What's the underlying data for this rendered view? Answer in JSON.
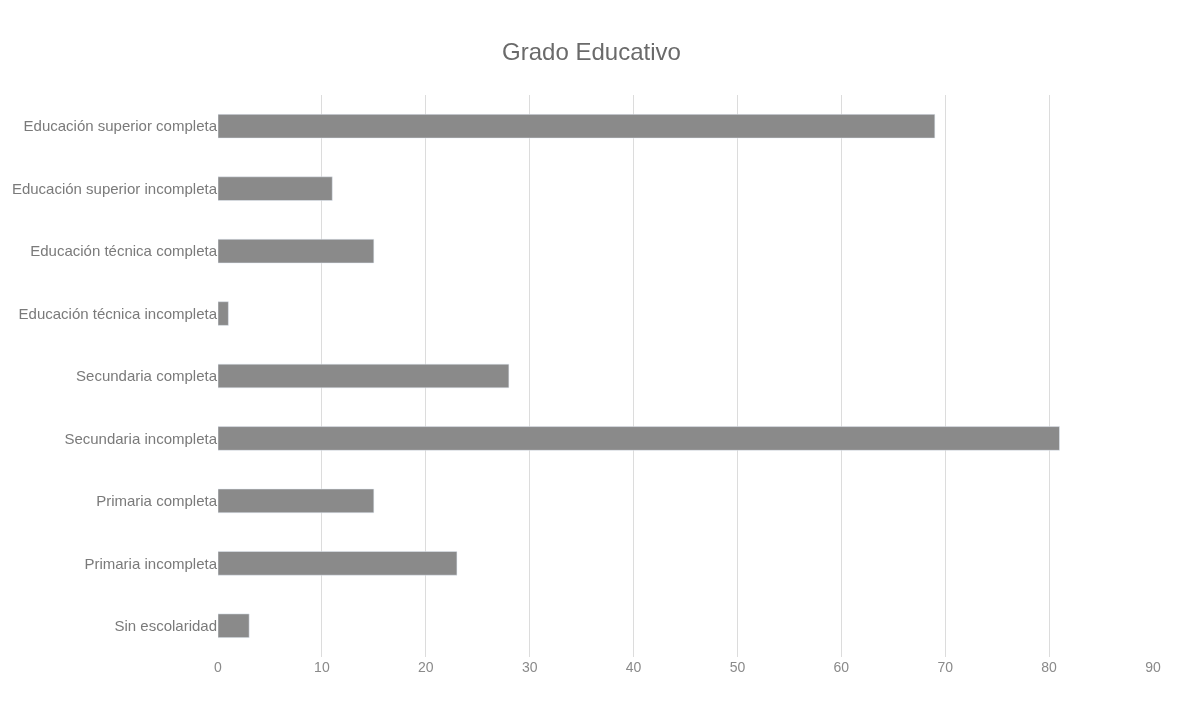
{
  "chart_data": {
    "type": "bar",
    "orientation": "horizontal",
    "title": "Grado Educativo",
    "categories": [
      "Educación superior completa",
      "Educación superior incompleta",
      "Educación técnica completa",
      "Educación técnica incompleta",
      "Secundaria completa",
      "Secundaria incompleta",
      "Primaria completa",
      "Primaria incompleta",
      "Sin escolaridad"
    ],
    "values": [
      69,
      11,
      15,
      1,
      28,
      81,
      15,
      23,
      3
    ],
    "color": "#8a8a8a",
    "xlim": [
      0,
      90
    ],
    "xticks": [
      0,
      10,
      20,
      30,
      40,
      50,
      60,
      70,
      80,
      90
    ],
    "grid": "x"
  }
}
